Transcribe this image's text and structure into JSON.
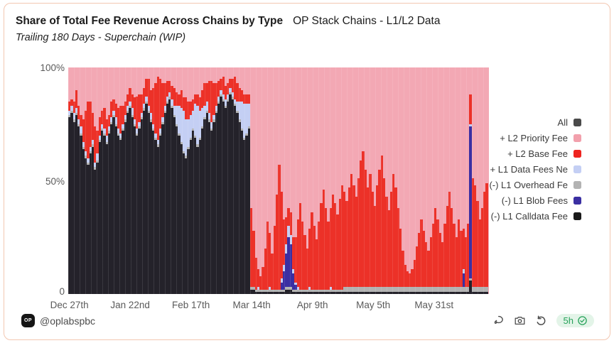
{
  "header": {
    "title_bold": "Share of Total Fee Revenue Across Chains by Type",
    "title_secondary": "OP Stack Chains - L1/L2 Data",
    "subtitle": "Trailing 180 Days - Superchain (WIP)"
  },
  "chart_data": {
    "type": "bar",
    "stacked": true,
    "normalized_percent": true,
    "title": "Share of Total Fee Revenue Across Chains by Type — OP Stack Chains - L1/L2 Data",
    "subtitle": "Trailing 180 Days - Superchain (WIP)",
    "ylim": [
      0,
      100
    ],
    "y_ticks": {
      "top": "100%",
      "mid": "50%",
      "bottom": "0"
    },
    "days_span": 180,
    "x_ticks": [
      {
        "label": "Dec 27th",
        "day": 0
      },
      {
        "label": "Jan 22nd",
        "day": 26
      },
      {
        "label": "Feb 17th",
        "day": 52
      },
      {
        "label": "Mar 14th",
        "day": 78
      },
      {
        "label": "Apr 9th",
        "day": 104
      },
      {
        "label": "May 5th",
        "day": 130
      },
      {
        "label": "May 31st",
        "day": 156
      }
    ],
    "legend_position": "right",
    "legend": [
      {
        "label": "All",
        "color": "#4a4a4a"
      },
      {
        "label": "+ L2 Priority Fee",
        "color": "#f2a0ac"
      },
      {
        "label": "+ L2 Base Fee",
        "color": "#ee2420"
      },
      {
        "label": "+ L1 Data Fees Ne",
        "color": "#c4cff4"
      },
      {
        "label": "(-) L1 Overhead Fe",
        "color": "#b3b3b3"
      },
      {
        "label": "(-) L1 Blob Fees",
        "color": "#3b2fa2"
      },
      {
        "label": "(-) L1 Calldata Fee",
        "color": "#1a1a1a"
      }
    ],
    "colors": {
      "l1_calldata_fee": "#24222a",
      "l1_overhead_fee": "#b3b3b3",
      "l1_blob_fees": "#3b2fa2",
      "l1_data_fees": "#c4cff4",
      "l2_base_fee": "#ec3128",
      "l2_priority_fee": "#f3a8b4"
    },
    "series_order_bottom_to_top": [
      "l1_calldata_fee",
      "l1_overhead_fee",
      "l1_blob_fees",
      "l1_data_fees",
      "l2_base_fee"
    ],
    "remainder_series": "l2_priority_fee",
    "remainder_fills_to_100": true,
    "bar_value_order": [
      "l1_calldata_fee",
      "l1_overhead_fee",
      "l1_blob_fees",
      "l1_data_fees",
      "l2_base_fee"
    ],
    "bars": [
      [
        78,
        1,
        0,
        2,
        4
      ],
      [
        80,
        1,
        0,
        2,
        3
      ],
      [
        76,
        1,
        0,
        3,
        5
      ],
      [
        79,
        1,
        0,
        2,
        8
      ],
      [
        74,
        1,
        0,
        2,
        6
      ],
      [
        70,
        1,
        0,
        3,
        5
      ],
      [
        64,
        1,
        0,
        2,
        10
      ],
      [
        60,
        1,
        0,
        2,
        18
      ],
      [
        57,
        1,
        0,
        2,
        25
      ],
      [
        62,
        1,
        0,
        2,
        20
      ],
      [
        65,
        1,
        0,
        2,
        12
      ],
      [
        55,
        1,
        0,
        2,
        16
      ],
      [
        58,
        1,
        0,
        3,
        10
      ],
      [
        67,
        1,
        0,
        2,
        8
      ],
      [
        72,
        1,
        0,
        2,
        6
      ],
      [
        70,
        1,
        0,
        2,
        9
      ],
      [
        66,
        1,
        0,
        3,
        7
      ],
      [
        71,
        1,
        0,
        2,
        5
      ],
      [
        75,
        1,
        0,
        2,
        7
      ],
      [
        78,
        1,
        0,
        2,
        5
      ],
      [
        74,
        1,
        0,
        3,
        6
      ],
      [
        70,
        1,
        0,
        2,
        9
      ],
      [
        68,
        1,
        0,
        2,
        12
      ],
      [
        72,
        1,
        0,
        2,
        8
      ],
      [
        76,
        1,
        0,
        2,
        6
      ],
      [
        80,
        1,
        0,
        2,
        5
      ],
      [
        82,
        1,
        0,
        2,
        6
      ],
      [
        78,
        1,
        0,
        3,
        6
      ],
      [
        74,
        1,
        0,
        2,
        10
      ],
      [
        70,
        1,
        0,
        2,
        14
      ],
      [
        73,
        1,
        0,
        2,
        12
      ],
      [
        77,
        1,
        0,
        2,
        8
      ],
      [
        81,
        1,
        0,
        2,
        7
      ],
      [
        84,
        1,
        0,
        2,
        8
      ],
      [
        80,
        1,
        0,
        2,
        12
      ],
      [
        76,
        1,
        0,
        3,
        10
      ],
      [
        72,
        1,
        0,
        2,
        16
      ],
      [
        68,
        1,
        0,
        2,
        22
      ],
      [
        65,
        1,
        0,
        2,
        28
      ],
      [
        70,
        1,
        0,
        2,
        22
      ],
      [
        75,
        1,
        0,
        2,
        15
      ],
      [
        80,
        1,
        0,
        2,
        10
      ],
      [
        84,
        1,
        0,
        2,
        7
      ],
      [
        86,
        1,
        0,
        2,
        5
      ],
      [
        82,
        1,
        0,
        3,
        6
      ],
      [
        78,
        1,
        0,
        4,
        8
      ],
      [
        74,
        1,
        0,
        8,
        6
      ],
      [
        70,
        1,
        0,
        12,
        5
      ],
      [
        66,
        1,
        0,
        15,
        8
      ],
      [
        62,
        1,
        0,
        18,
        6
      ],
      [
        60,
        1,
        0,
        16,
        10
      ],
      [
        64,
        1,
        0,
        12,
        8
      ],
      [
        68,
        1,
        0,
        10,
        6
      ],
      [
        72,
        1,
        0,
        8,
        5
      ],
      [
        69,
        1,
        0,
        14,
        4
      ],
      [
        65,
        1,
        0,
        17,
        5
      ],
      [
        68,
        1,
        0,
        12,
        6
      ],
      [
        73,
        1,
        0,
        8,
        8
      ],
      [
        77,
        1,
        0,
        5,
        10
      ],
      [
        80,
        1,
        0,
        4,
        8
      ],
      [
        76,
        1,
        0,
        3,
        14
      ],
      [
        72,
        1,
        0,
        3,
        18
      ],
      [
        76,
        1,
        0,
        2,
        14
      ],
      [
        80,
        1,
        0,
        2,
        10
      ],
      [
        84,
        1,
        0,
        2,
        7
      ],
      [
        87,
        1,
        0,
        2,
        5
      ],
      [
        85,
        1,
        0,
        2,
        8
      ],
      [
        82,
        1,
        0,
        3,
        6
      ],
      [
        85,
        1,
        0,
        2,
        5
      ],
      [
        88,
        1,
        0,
        2,
        4
      ],
      [
        86,
        1,
        0,
        2,
        6
      ],
      [
        83,
        1,
        0,
        2,
        10
      ],
      [
        80,
        1,
        0,
        4,
        8
      ],
      [
        76,
        1,
        0,
        8,
        6
      ],
      [
        72,
        1,
        0,
        12,
        5
      ],
      [
        68,
        1,
        0,
        15,
        4
      ],
      [
        70,
        1,
        0,
        13,
        4
      ],
      [
        73,
        1,
        0,
        10,
        4
      ],
      [
        2,
        1,
        0,
        0,
        35
      ],
      [
        2,
        1,
        0,
        0,
        25
      ],
      [
        1,
        1,
        0,
        0,
        14
      ],
      [
        1,
        1,
        0,
        1,
        8
      ],
      [
        1,
        1,
        0,
        0,
        6
      ],
      [
        1,
        1,
        0,
        0,
        10
      ],
      [
        1,
        1,
        0,
        0,
        18
      ],
      [
        1,
        1,
        0,
        0,
        30
      ],
      [
        1,
        1,
        0,
        1,
        24
      ],
      [
        1,
        1,
        0,
        0,
        16
      ],
      [
        1,
        1,
        0,
        0,
        28
      ],
      [
        1,
        1,
        0,
        0,
        42
      ],
      [
        1,
        1,
        0,
        0,
        55
      ],
      [
        1,
        1,
        3,
        2,
        38
      ],
      [
        1,
        1,
        8,
        3,
        20
      ],
      [
        2,
        1,
        15,
        4,
        12
      ],
      [
        2,
        1,
        22,
        5,
        8
      ],
      [
        2,
        1,
        19,
        4,
        10
      ],
      [
        1,
        1,
        7,
        2,
        14
      ],
      [
        1,
        1,
        2,
        1,
        20
      ],
      [
        1,
        1,
        0,
        1,
        30
      ],
      [
        1,
        1,
        0,
        0,
        38
      ],
      [
        1,
        1,
        0,
        0,
        30
      ],
      [
        1,
        1,
        0,
        0,
        24
      ],
      [
        1,
        1,
        0,
        0,
        18
      ],
      [
        1,
        1,
        0,
        1,
        26
      ],
      [
        1,
        1,
        0,
        0,
        34
      ],
      [
        1,
        1,
        0,
        0,
        28
      ],
      [
        1,
        1,
        0,
        0,
        22
      ],
      [
        1,
        1,
        0,
        0,
        30
      ],
      [
        1,
        1,
        0,
        0,
        38
      ],
      [
        1,
        1,
        0,
        0,
        44
      ],
      [
        1,
        1,
        0,
        0,
        36
      ],
      [
        1,
        1,
        0,
        0,
        30
      ],
      [
        1,
        1,
        0,
        1,
        35
      ],
      [
        1,
        1,
        0,
        0,
        42
      ],
      [
        1,
        1,
        0,
        0,
        38
      ],
      [
        1,
        1,
        0,
        0,
        33
      ],
      [
        1,
        1,
        0,
        0,
        40
      ],
      [
        1,
        1,
        0,
        0,
        46
      ],
      [
        1,
        2,
        0,
        0,
        42
      ],
      [
        1,
        2,
        0,
        0,
        38
      ],
      [
        1,
        2,
        0,
        0,
        44
      ],
      [
        1,
        2,
        0,
        0,
        50
      ],
      [
        1,
        2,
        0,
        0,
        45
      ],
      [
        1,
        2,
        0,
        0,
        40
      ],
      [
        1,
        2,
        0,
        0,
        48
      ],
      [
        1,
        2,
        0,
        0,
        56
      ],
      [
        1,
        2,
        0,
        0,
        60
      ],
      [
        1,
        2,
        0,
        0,
        52
      ],
      [
        1,
        2,
        0,
        0,
        44
      ],
      [
        1,
        2,
        0,
        0,
        50
      ],
      [
        1,
        2,
        0,
        0,
        42
      ],
      [
        1,
        2,
        0,
        0,
        36
      ],
      [
        1,
        2,
        0,
        0,
        45
      ],
      [
        1,
        2,
        0,
        0,
        52
      ],
      [
        1,
        2,
        0,
        0,
        58
      ],
      [
        1,
        2,
        0,
        0,
        48
      ],
      [
        1,
        2,
        0,
        0,
        40
      ],
      [
        1,
        2,
        0,
        0,
        34
      ],
      [
        1,
        2,
        0,
        0,
        42
      ],
      [
        1,
        2,
        0,
        0,
        50
      ],
      [
        1,
        2,
        0,
        0,
        44
      ],
      [
        1,
        2,
        0,
        0,
        35
      ],
      [
        1,
        2,
        0,
        0,
        26
      ],
      [
        1,
        2,
        0,
        0,
        16
      ],
      [
        1,
        2,
        0,
        0,
        10
      ],
      [
        1,
        2,
        0,
        0,
        7
      ],
      [
        1,
        2,
        0,
        0,
        6
      ],
      [
        1,
        2,
        0,
        0,
        8
      ],
      [
        1,
        2,
        0,
        0,
        12
      ],
      [
        1,
        2,
        0,
        0,
        18
      ],
      [
        1,
        2,
        0,
        0,
        24
      ],
      [
        1,
        2,
        0,
        0,
        30
      ],
      [
        1,
        2,
        0,
        0,
        25
      ],
      [
        1,
        2,
        0,
        0,
        20
      ],
      [
        1,
        2,
        0,
        0,
        16
      ],
      [
        1,
        2,
        0,
        0,
        22
      ],
      [
        1,
        2,
        0,
        0,
        28
      ],
      [
        1,
        2,
        0,
        0,
        35
      ],
      [
        1,
        2,
        0,
        0,
        30
      ],
      [
        1,
        2,
        0,
        0,
        24
      ],
      [
        1,
        2,
        0,
        0,
        20
      ],
      [
        1,
        2,
        0,
        0,
        28
      ],
      [
        1,
        2,
        0,
        0,
        36
      ],
      [
        1,
        2,
        0,
        0,
        42
      ],
      [
        1,
        2,
        0,
        0,
        35
      ],
      [
        1,
        2,
        0,
        0,
        28
      ],
      [
        1,
        2,
        0,
        0,
        22
      ],
      [
        1,
        2,
        0,
        0,
        30
      ],
      [
        1,
        2,
        0,
        0,
        25
      ],
      [
        1,
        2,
        6,
        2,
        18
      ],
      [
        1,
        2,
        0,
        0,
        22
      ],
      [
        1,
        2,
        0,
        0,
        28
      ],
      [
        6,
        1,
        67,
        1,
        13
      ],
      [
        1,
        2,
        0,
        0,
        48
      ],
      [
        1,
        2,
        0,
        0,
        45
      ],
      [
        1,
        2,
        0,
        0,
        38
      ],
      [
        1,
        2,
        0,
        0,
        30
      ],
      [
        1,
        2,
        0,
        0,
        35
      ],
      [
        1,
        2,
        0,
        0,
        42
      ],
      [
        1,
        2,
        0,
        0,
        46
      ]
    ]
  },
  "footer": {
    "logo_text": "OP",
    "handle": "@oplabspbc",
    "freshness_badge": "5h",
    "icons": [
      "lasso-select-icon",
      "camera-icon",
      "reset-undo-icon",
      "verified-check-icon"
    ]
  },
  "colors": {
    "card_border": "#f3c7b1",
    "badge_bg": "#e3f4e8",
    "badge_green": "#27a25a",
    "icon_gray": "#4d4d4d",
    "axis_label": "#5a5a5a"
  }
}
